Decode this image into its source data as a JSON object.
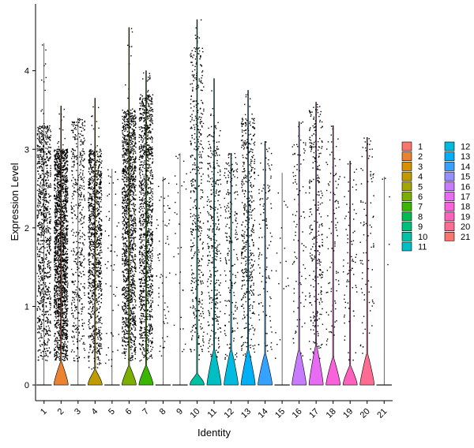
{
  "chart_data": {
    "type": "violin",
    "xlabel": "Identity",
    "ylabel": "Expression Level",
    "ylim": [
      -0.2,
      4.85
    ],
    "yticks": [
      0,
      1,
      2,
      3,
      4
    ],
    "categories": [
      "1",
      "2",
      "3",
      "4",
      "5",
      "6",
      "7",
      "8",
      "9",
      "10",
      "11",
      "12",
      "13",
      "14",
      "15",
      "16",
      "17",
      "18",
      "19",
      "20",
      "21"
    ],
    "colors": [
      "#F8766D",
      "#EA8331",
      "#D89000",
      "#C09B00",
      "#A3A500",
      "#7CAE00",
      "#39B600",
      "#00BB4E",
      "#00BF7D",
      "#00C1A3",
      "#00BFC4",
      "#00BAE0",
      "#00B0F6",
      "#35A2FF",
      "#9590FF",
      "#C77CFF",
      "#E76BF3",
      "#FA62DB",
      "#FF62BC",
      "#FF6C91",
      "#F8766D"
    ],
    "series": [
      {
        "category": "1",
        "violin_peak": 0,
        "point_count": 900,
        "point_min": 0.3,
        "point_max": 3.3,
        "max": 4.35
      },
      {
        "category": "2",
        "violin_peak": 0.3,
        "point_count": 1800,
        "point_min": 0.3,
        "point_max": 3.0,
        "max": 3.55
      },
      {
        "category": "3",
        "violin_peak": 0,
        "point_count": 450,
        "point_min": 0.3,
        "point_max": 3.4,
        "max": 3.4
      },
      {
        "category": "4",
        "violin_peak": 0.2,
        "point_count": 1000,
        "point_min": 0.2,
        "point_max": 3.0,
        "max": 3.65
      },
      {
        "category": "5",
        "violin_peak": 0,
        "point_count": 50,
        "point_min": 0.2,
        "point_max": 2.7,
        "max": 2.75
      },
      {
        "category": "6",
        "violin_peak": 0.25,
        "point_count": 1400,
        "point_min": 0.3,
        "point_max": 3.5,
        "max": 4.55
      },
      {
        "category": "7",
        "violin_peak": 0.25,
        "point_count": 1200,
        "point_min": 0.3,
        "point_max": 3.7,
        "max": 4.0
      },
      {
        "category": "8",
        "violin_peak": 0,
        "point_count": 60,
        "point_min": 0.3,
        "point_max": 2.6,
        "max": 2.65
      },
      {
        "category": "9",
        "violin_peak": 0,
        "point_count": 30,
        "point_min": 0.3,
        "point_max": 2.9,
        "max": 2.95
      },
      {
        "category": "10",
        "violin_peak": 0.15,
        "point_count": 450,
        "point_min": 0.3,
        "point_max": 4.3,
        "max": 4.65
      },
      {
        "category": "11",
        "violin_peak": 0.45,
        "point_count": 350,
        "point_min": 0.3,
        "point_max": 3.3,
        "max": 3.9
      },
      {
        "category": "12",
        "violin_peak": 0.45,
        "point_count": 200,
        "point_min": 0.3,
        "point_max": 2.9,
        "max": 2.95
      },
      {
        "category": "13",
        "violin_peak": 0.45,
        "point_count": 450,
        "point_min": 0.3,
        "point_max": 3.4,
        "max": 3.75
      },
      {
        "category": "14",
        "violin_peak": 0.4,
        "point_count": 120,
        "point_min": 0.3,
        "point_max": 3.0,
        "max": 3.1
      },
      {
        "category": "15",
        "violin_peak": 0,
        "point_count": 20,
        "point_min": 0.3,
        "point_max": 2.7,
        "max": 2.7
      },
      {
        "category": "16",
        "violin_peak": 0.45,
        "point_count": 100,
        "point_min": 0.3,
        "point_max": 3.3,
        "max": 3.35
      },
      {
        "category": "17",
        "violin_peak": 0.5,
        "point_count": 300,
        "point_min": 0.3,
        "point_max": 3.5,
        "max": 3.6
      },
      {
        "category": "18",
        "violin_peak": 0.35,
        "point_count": 100,
        "point_min": 0.3,
        "point_max": 3.2,
        "max": 3.3
      },
      {
        "category": "19",
        "violin_peak": 0.25,
        "point_count": 80,
        "point_min": 0.3,
        "point_max": 2.8,
        "max": 2.85
      },
      {
        "category": "20",
        "violin_peak": 0.4,
        "point_count": 90,
        "point_min": 0.3,
        "point_max": 3.1,
        "max": 3.15
      },
      {
        "category": "21",
        "violin_peak": 0,
        "point_count": 3,
        "point_min": 1.5,
        "point_max": 2.6,
        "max": 2.65
      }
    ],
    "legend": {
      "position": "right",
      "columns": 2,
      "entries": [
        "1",
        "2",
        "3",
        "4",
        "5",
        "6",
        "7",
        "8",
        "9",
        "10",
        "11",
        "12",
        "13",
        "14",
        "15",
        "16",
        "17",
        "18",
        "19",
        "20",
        "21"
      ]
    }
  }
}
